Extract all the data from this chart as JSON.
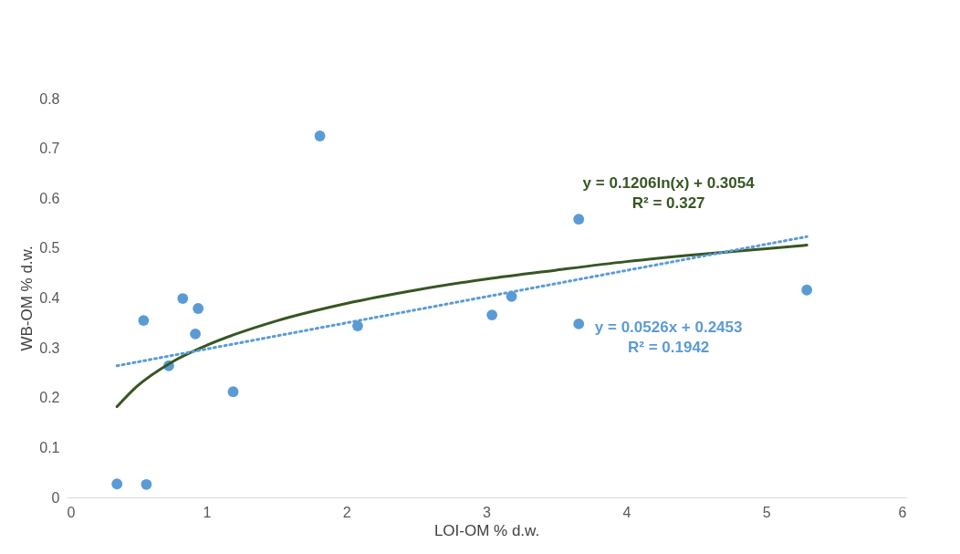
{
  "chart_data": {
    "type": "scatter",
    "xlabel": "LOI-OM % d.w.",
    "ylabel": "WB-OM % d.w.",
    "xlim": [
      0,
      6
    ],
    "ylim": [
      0,
      0.8
    ],
    "xticks": [
      0,
      1,
      2,
      3,
      4,
      5,
      6
    ],
    "yticks": [
      0,
      0.1,
      0.2,
      0.3,
      0.4,
      0.5,
      0.6,
      0.7,
      0.8
    ],
    "series": [
      {
        "color": "#5b9bd5",
        "marker": "circle",
        "x": [
          0.36,
          0.57,
          0.55,
          0.73,
          0.83,
          0.92,
          0.94,
          1.19,
          1.81,
          2.08,
          3.04,
          3.18,
          3.66,
          3.66,
          5.29
        ],
        "values": [
          0.027,
          0.026,
          0.355,
          0.264,
          0.399,
          0.328,
          0.379,
          0.212,
          0.725,
          0.344,
          0.366,
          0.403,
          0.558,
          0.348,
          0.416
        ]
      },
      {
        "type": "line",
        "color": "#375623",
        "line_style": "solid",
        "marker": "none",
        "x": [
          0.36,
          0.5,
          0.75,
          1,
          1.5,
          2,
          2.5,
          3,
          3.5,
          4,
          4.5,
          5,
          5.29
        ],
        "values": [
          0.182,
          0.222,
          0.271,
          0.305,
          0.354,
          0.389,
          0.416,
          0.438,
          0.456,
          0.473,
          0.487,
          0.499,
          0.506
        ]
      },
      {
        "type": "line",
        "color": "#5b9bd5",
        "line_style": "dotted",
        "marker": "none",
        "x": [
          0.36,
          5.29
        ],
        "values": [
          0.264,
          0.523
        ]
      }
    ],
    "annotations": [
      "y = 0.1206ln(x) + 0.3054",
      "R² = 0.327",
      "y = 0.0526x + 0.2453",
      "R² = 0.1942"
    ]
  }
}
